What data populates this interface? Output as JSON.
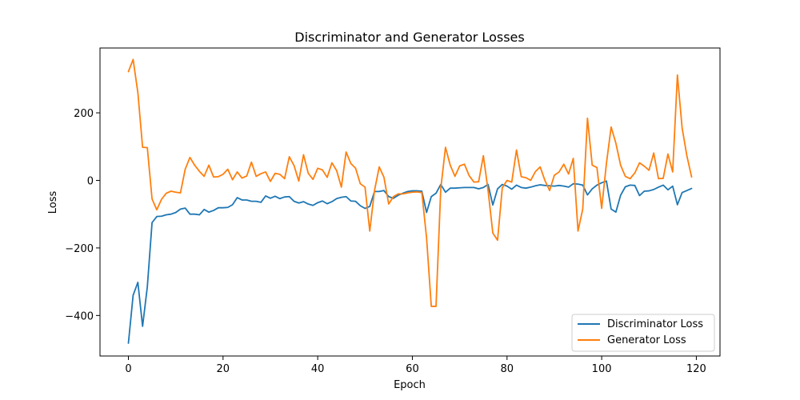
{
  "chart_data": {
    "type": "line",
    "title": "Discriminator and Generator Losses",
    "xlabel": "Epoch",
    "ylabel": "Loss",
    "xlim": [
      -6,
      125
    ],
    "ylim": [
      -520,
      392
    ],
    "xticks": [
      0,
      20,
      40,
      60,
      80,
      100,
      120
    ],
    "yticks": [
      -400,
      -200,
      0,
      200
    ],
    "xtick_labels": [
      "0",
      "20",
      "40",
      "60",
      "80",
      "100",
      "120"
    ],
    "ytick_labels": [
      "−400",
      "−200",
      "0",
      "200"
    ],
    "grid": false,
    "legend_position": "lower-right",
    "series": [
      {
        "name": "Discriminator Loss",
        "color": "#1f77b4",
        "values": [
          -482,
          -340,
          -302,
          -432,
          -315,
          -125,
          -107,
          -106,
          -102,
          -100,
          -95,
          -85,
          -82,
          -100,
          -100,
          -102,
          -86,
          -94,
          -89,
          -81,
          -81,
          -80,
          -72,
          -51,
          -58,
          -58,
          -62,
          -62,
          -65,
          -46,
          -53,
          -47,
          -54,
          -49,
          -48,
          -62,
          -67,
          -63,
          -70,
          -74,
          -66,
          -61,
          -69,
          -63,
          -54,
          -50,
          -48,
          -61,
          -62,
          -75,
          -83,
          -77,
          -33,
          -33,
          -30,
          -48,
          -53,
          -44,
          -38,
          -33,
          -31,
          -31,
          -32,
          -95,
          -48,
          -38,
          -12,
          -35,
          -23,
          -23,
          -22,
          -21,
          -21,
          -21,
          -25,
          -21,
          -12,
          -73,
          -25,
          -12,
          -17,
          -26,
          -14,
          -21,
          -23,
          -20,
          -16,
          -13,
          -15,
          -16,
          -17,
          -15,
          -17,
          -20,
          -10,
          -11,
          -14,
          -43,
          -25,
          -14,
          -7,
          -2,
          -85,
          -94,
          -44,
          -19,
          -14,
          -15,
          -45,
          -32,
          -31,
          -27,
          -20,
          -14,
          -28,
          -17,
          -72,
          -36,
          -30,
          -24
        ]
      },
      {
        "name": "Generator Loss",
        "color": "#ff7f0e",
        "values": [
          322,
          358,
          260,
          98,
          97,
          -55,
          -87,
          -56,
          -38,
          -32,
          -35,
          -37,
          33,
          68,
          45,
          27,
          12,
          45,
          10,
          11,
          18,
          33,
          2,
          25,
          7,
          13,
          54,
          12,
          20,
          25,
          -3,
          21,
          18,
          5,
          70,
          44,
          -2,
          76,
          21,
          3,
          36,
          31,
          9,
          52,
          29,
          -20,
          84,
          50,
          36,
          -10,
          -20,
          -150,
          -30,
          40,
          9,
          -70,
          -48,
          -40,
          -40,
          -37,
          -35,
          -34,
          -36,
          -170,
          -373,
          -373,
          -25,
          98,
          45,
          12,
          43,
          48,
          14,
          -5,
          -4,
          73,
          -30,
          -156,
          -177,
          -22,
          0,
          -5,
          90,
          11,
          8,
          0,
          26,
          40,
          0,
          -30,
          15,
          25,
          48,
          19,
          65,
          -150,
          -85,
          184,
          45,
          38,
          -83,
          50,
          158,
          110,
          45,
          12,
          5,
          22,
          52,
          42,
          30,
          81,
          5,
          6,
          78,
          25,
          312,
          155,
          73,
          10
        ]
      }
    ]
  }
}
